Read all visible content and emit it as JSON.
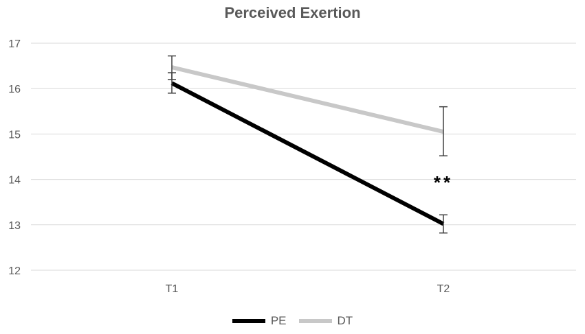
{
  "chart_data": {
    "type": "line",
    "title": "Perceived Exertion",
    "categories": [
      "T1",
      "T2"
    ],
    "xlabel": "",
    "ylabel": "",
    "ylim": [
      12,
      17
    ],
    "yticks": [
      12,
      13,
      14,
      15,
      16,
      17
    ],
    "grid": true,
    "legend_position": "bottom",
    "series": [
      {
        "name": "PE",
        "color": "#000000",
        "values": [
          16.12,
          13.02
        ],
        "error": [
          [
            15.9,
            16.35
          ],
          [
            12.82,
            13.22
          ]
        ]
      },
      {
        "name": "DT",
        "color": "#c8c8c8",
        "values": [
          16.47,
          15.05
        ],
        "error": [
          [
            16.2,
            16.72
          ],
          [
            14.52,
            15.6
          ]
        ]
      }
    ],
    "annotations": [
      {
        "text": "**",
        "x": "T2",
        "y": 13.98
      }
    ]
  }
}
